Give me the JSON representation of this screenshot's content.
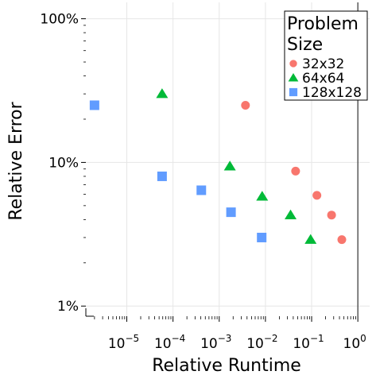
{
  "chart_data": {
    "type": "scatter",
    "xlabel": "Relative Runtime",
    "ylabel": "Relative Error",
    "xscale": "log",
    "yscale": "log",
    "xlim": [
      1.3e-06,
      1.8
    ],
    "ylim": [
      0.0085,
      1.3
    ],
    "x_ticks": [
      {
        "value": 1e-05,
        "base": "10",
        "exp": "−5"
      },
      {
        "value": 0.0001,
        "base": "10",
        "exp": "−4"
      },
      {
        "value": 0.001,
        "base": "10",
        "exp": "−3"
      },
      {
        "value": 0.01,
        "base": "10",
        "exp": "−2"
      },
      {
        "value": 0.1,
        "base": "10",
        "exp": "−1"
      },
      {
        "value": 1,
        "base": "10",
        "exp": "0"
      }
    ],
    "y_ticks": [
      {
        "value": 1,
        "label": "100%"
      },
      {
        "value": 0.1,
        "label": "10%"
      },
      {
        "value": 0.01,
        "label": "1%"
      }
    ],
    "grid": true,
    "legend_title": "Problem Size",
    "legend_position": "top-right",
    "series": [
      {
        "name": "32x32",
        "marker": "circle",
        "color": "#F8766D",
        "points": [
          {
            "x": 0.0037,
            "y": 0.25
          },
          {
            "x": 0.045,
            "y": 0.087
          },
          {
            "x": 0.13,
            "y": 0.059
          },
          {
            "x": 0.27,
            "y": 0.043
          },
          {
            "x": 0.45,
            "y": 0.029
          }
        ]
      },
      {
        "name": "64x64",
        "marker": "triangle",
        "color": "#00BA38",
        "points": [
          {
            "x": 5.8e-05,
            "y": 0.3
          },
          {
            "x": 0.0017,
            "y": 0.094
          },
          {
            "x": 0.0085,
            "y": 0.058
          },
          {
            "x": 0.035,
            "y": 0.043
          },
          {
            "x": 0.095,
            "y": 0.029
          }
        ]
      },
      {
        "name": "128x128",
        "marker": "square",
        "color": "#619CFF",
        "points": [
          {
            "x": 2e-06,
            "y": 0.25
          },
          {
            "x": 5.8e-05,
            "y": 0.08
          },
          {
            "x": 0.00041,
            "y": 0.064
          },
          {
            "x": 0.0018,
            "y": 0.045
          },
          {
            "x": 0.0083,
            "y": 0.03
          }
        ]
      }
    ]
  }
}
